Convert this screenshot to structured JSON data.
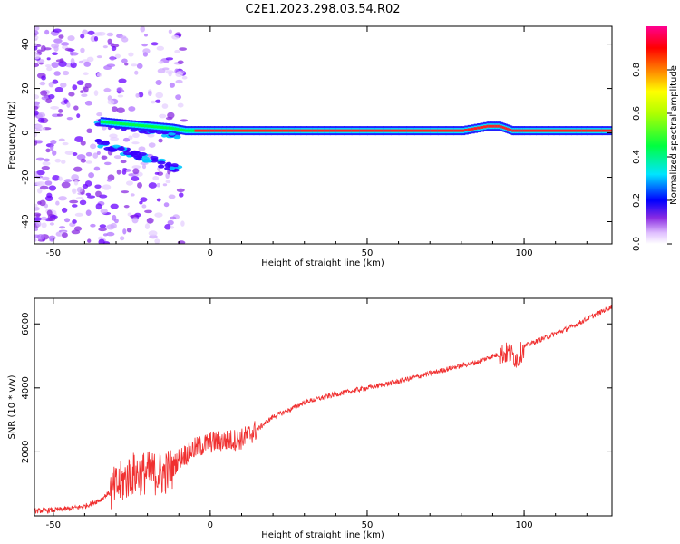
{
  "title": "C2E1.2023.298.03.54.R02",
  "chart_data": [
    {
      "type": "heatmap",
      "xlabel": "Height of straight line (km)",
      "ylabel": "Frequency (Hz)",
      "xlim": [
        -56,
        128
      ],
      "ylim": [
        -50,
        48
      ],
      "xticks": [
        "-50",
        "0",
        "50",
        "100"
      ],
      "xtick_values": [
        -50,
        0,
        50,
        100
      ],
      "yticks": [
        "-40",
        "-20",
        "0",
        "20",
        "40"
      ],
      "ytick_values": [
        -40,
        -20,
        0,
        20,
        40
      ],
      "grid": false,
      "ridge": {
        "description_values_x": [
          -35,
          -28,
          -20,
          -12,
          -8,
          0,
          10,
          25,
          40,
          60,
          80,
          88,
          92,
          96,
          100,
          115,
          128
        ],
        "center_freq_hz": [
          5,
          4,
          3,
          2,
          1,
          1,
          1,
          1,
          1,
          1,
          1,
          3,
          3,
          1,
          1,
          1,
          1
        ]
      },
      "colorbar": {
        "label": "Normalized spectral amplitude",
        "ticks": [
          "0.0",
          "0.2",
          "0.4",
          "0.6",
          "0.8"
        ],
        "tick_values": [
          0.0,
          0.2,
          0.4,
          0.6,
          0.8
        ],
        "range": [
          0,
          1
        ],
        "colors": [
          "#ffffff",
          "#c080ff",
          "#6a00ff",
          "#0000ff",
          "#00e0ff",
          "#00ff40",
          "#b0ff00",
          "#ffff00",
          "#ff8000",
          "#ff0000",
          "#ff0090"
        ]
      }
    },
    {
      "type": "line",
      "xlabel": "Height of straight line (km)",
      "ylabel": "SNR (10 * v/v)",
      "xlim": [
        -56,
        128
      ],
      "ylim": [
        0,
        6800
      ],
      "xticks": [
        "-50",
        "0",
        "50",
        "100"
      ],
      "xtick_values": [
        -50,
        0,
        50,
        100
      ],
      "yticks": [
        "2000",
        "4000",
        "6000"
      ],
      "ytick_values": [
        2000,
        4000,
        6000
      ],
      "grid": false,
      "series": [
        {
          "color": "#f03030",
          "x": [
            -56,
            -50,
            -45,
            -40,
            -35,
            -30,
            -25,
            -20,
            -15,
            -12,
            -10,
            -5,
            0,
            5,
            10,
            15,
            20,
            25,
            30,
            40,
            50,
            60,
            70,
            80,
            85,
            90,
            95,
            98,
            100,
            105,
            110,
            115,
            120,
            125,
            128
          ],
          "y": [
            150,
            180,
            220,
            300,
            500,
            900,
            1300,
            1350,
            1300,
            1500,
            1800,
            2100,
            2300,
            2350,
            2400,
            2700,
            3100,
            3300,
            3550,
            3800,
            4000,
            4200,
            4450,
            4700,
            4800,
            5000,
            5100,
            4900,
            5300,
            5500,
            5700,
            5900,
            6150,
            6400,
            6550
          ]
        }
      ]
    }
  ]
}
